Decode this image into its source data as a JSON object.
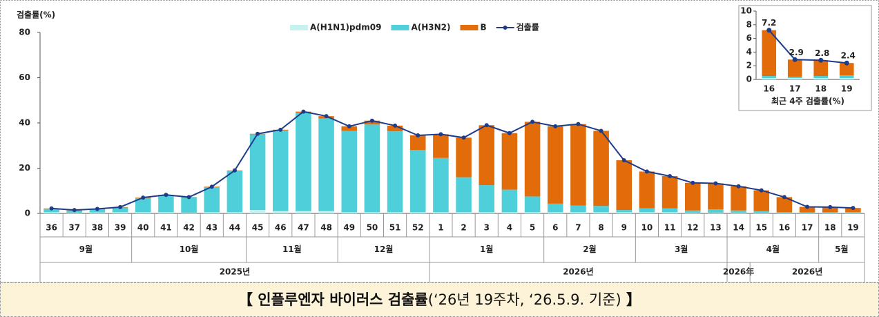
{
  "chart_data": [
    {
      "type": "bar",
      "y_label": "검출률(%)",
      "categories": [
        "36",
        "37",
        "38",
        "39",
        "40",
        "41",
        "42",
        "43",
        "44",
        "45",
        "46",
        "47",
        "48",
        "49",
        "50",
        "51",
        "52",
        "1",
        "2",
        "3",
        "4",
        "5",
        "6",
        "7",
        "8",
        "9",
        "10",
        "11",
        "12",
        "13",
        "14",
        "15",
        "16",
        "17",
        "18",
        "19"
      ],
      "months": [
        "9월",
        "9월",
        "9월",
        "9월",
        "10월",
        "10월",
        "10월",
        "10월",
        "10월",
        "11월",
        "11월",
        "11월",
        "11월",
        "12월",
        "12월",
        "12월",
        "12월",
        "1월",
        "1월",
        "1월",
        "1월",
        "1월",
        "2월",
        "2월",
        "2월",
        "2월",
        "3월",
        "3월",
        "3월",
        "3월",
        "4월",
        "4월",
        "4월",
        "4월",
        "5월",
        "5월"
      ],
      "years": [
        "2025년",
        "2025년",
        "2025년",
        "2025년",
        "2025년",
        "2025년",
        "2025년",
        "2025년",
        "2025년",
        "2025년",
        "2025년",
        "2025년",
        "2025년",
        "2025년",
        "2025년",
        "2025년",
        "2025년",
        "2026년",
        "2026년",
        "2026년",
        "2026년",
        "2026년",
        "2026년",
        "2026년",
        "2026년",
        "2026년",
        "2026년",
        "2026년",
        "2026년",
        "2026년",
        "2026年",
        "2026년",
        "2026년",
        "2026년",
        "2026년",
        "2026년"
      ],
      "series": [
        {
          "name": "A(H1N1)pdm09",
          "color": "#c6f1ef",
          "values": [
            0.5,
            0.3,
            0.4,
            0.5,
            0.5,
            0.5,
            0.3,
            0.5,
            0.5,
            1.5,
            1.0,
            1.0,
            1.0,
            0.5,
            0.5,
            0.5,
            0.5,
            0.5,
            0.5,
            0.5,
            0.5,
            0.5,
            0.5,
            0.5,
            0.5,
            0.5,
            0.5,
            0.5,
            0.3,
            0.3,
            0.3,
            0.3,
            0.2,
            0.2,
            0.2,
            0.2
          ]
        },
        {
          "name": "A(H3N2)",
          "color": "#4ecfd9",
          "values": [
            1.5,
            1.0,
            1.4,
            2.1,
            6.3,
            7.5,
            6.7,
            11.1,
            18.3,
            33.5,
            35.7,
            43.5,
            41.0,
            36.0,
            38.8,
            35.8,
            27.5,
            24.0,
            15.5,
            12.0,
            10.0,
            7.0,
            3.8,
            3.0,
            2.8,
            1.0,
            1.8,
            1.7,
            1.0,
            1.5,
            1.0,
            0.7,
            0.3,
            0.2,
            0.3,
            0.4
          ]
        },
        {
          "name": "B",
          "color": "#e36c0a",
          "values": [
            0.2,
            0.2,
            0.2,
            0.2,
            0.2,
            0.2,
            0.2,
            0.2,
            0.2,
            0.2,
            0.3,
            0.5,
            1.0,
            2.0,
            1.7,
            2.5,
            6.5,
            10.5,
            17.5,
            26.5,
            25.0,
            33.0,
            34.2,
            36.0,
            33.2,
            22.0,
            16.2,
            14.3,
            12.2,
            11.5,
            10.7,
            9.2,
            6.7,
            2.5,
            2.3,
            1.8
          ]
        }
      ],
      "line_series": {
        "name": "검출률",
        "color": "#1f3c88",
        "values": [
          2.2,
          1.5,
          2.0,
          2.8,
          7.0,
          8.2,
          7.2,
          11.8,
          19.0,
          35.2,
          37.0,
          45.0,
          43.0,
          38.5,
          41.0,
          38.8,
          34.5,
          35.0,
          33.5,
          39.0,
          35.5,
          40.5,
          38.5,
          39.5,
          36.5,
          23.5,
          18.5,
          16.5,
          13.5,
          13.3,
          12.0,
          10.2,
          7.2,
          2.9,
          2.8,
          2.4
        ]
      },
      "ylim": [
        0,
        80
      ],
      "yticks": [
        0,
        20,
        40,
        60,
        80
      ]
    },
    {
      "type": "bar",
      "x_label": "최근 4주 검출률(%)",
      "categories": [
        "16",
        "17",
        "18",
        "19"
      ],
      "series": [
        {
          "name": "A(H1N1)pdm09",
          "color": "#c6f1ef",
          "values": [
            0.2,
            0.2,
            0.2,
            0.2
          ]
        },
        {
          "name": "A(H3N2)",
          "color": "#4ecfd9",
          "values": [
            0.3,
            0.2,
            0.3,
            0.4
          ]
        },
        {
          "name": "B",
          "color": "#e36c0a",
          "values": [
            6.7,
            2.5,
            2.3,
            1.8
          ]
        }
      ],
      "line_series": {
        "name": "검출률",
        "color": "#1f3c88",
        "values": [
          7.2,
          2.9,
          2.8,
          2.4
        ]
      },
      "ylim": [
        0,
        10
      ],
      "yticks": [
        0,
        2,
        4,
        6,
        8,
        10
      ]
    }
  ],
  "caption": {
    "bold": "【 인플루엔자 바이러스 검출률",
    "normal": "(‘26년 19주차, ‘26.5.9. 기준)",
    "end": " 】"
  }
}
